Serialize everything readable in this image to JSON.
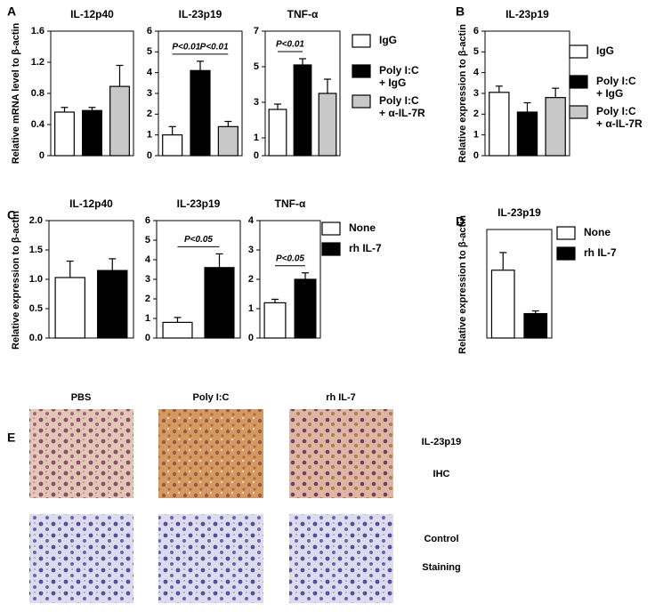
{
  "panels": [
    "A",
    "B",
    "C",
    "D",
    "E"
  ],
  "ylabels": [
    "Relative mRNA level to β-actin",
    "Relative expression to β-actin",
    "Relative expression to β-actin",
    "Relative expression to β-actin"
  ],
  "chart_data": [
    {
      "type": "bar",
      "title": "IL-12p40",
      "values": [
        0.56,
        0.58,
        0.89
      ],
      "errors": [
        0.06,
        0.04,
        0.27
      ],
      "colors": [
        "#ffffff",
        "#000000",
        "#c8c8c8"
      ],
      "ylim": [
        0,
        1.6
      ],
      "yticks": [
        0,
        0.4,
        0.8,
        1.2,
        1.6
      ]
    },
    {
      "type": "bar",
      "title": "IL-23p19",
      "values": [
        1.0,
        4.1,
        1.4
      ],
      "errors": [
        0.4,
        0.45,
        0.25
      ],
      "colors": [
        "#ffffff",
        "#000000",
        "#c8c8c8"
      ],
      "ylim": [
        0,
        6
      ],
      "yticks": [
        0,
        1,
        2,
        3,
        4,
        5,
        6
      ],
      "annotations": [
        {
          "text": "P<0.01",
          "bars": [
            0,
            1
          ]
        },
        {
          "text": "P<0.01",
          "bars": [
            1,
            2
          ]
        }
      ]
    },
    {
      "type": "bar",
      "title": "TNF-α",
      "values": [
        2.6,
        5.1,
        3.5
      ],
      "errors": [
        0.3,
        0.35,
        0.8
      ],
      "colors": [
        "#ffffff",
        "#000000",
        "#c8c8c8"
      ],
      "ylim": [
        0,
        7
      ],
      "yticks": [
        0,
        1,
        3,
        5,
        7
      ],
      "annotations": [
        {
          "text": "P<0.01",
          "bars": [
            0,
            1
          ]
        }
      ]
    },
    {
      "type": "bar",
      "title": "IL-23p19",
      "values": [
        3.05,
        2.1,
        2.8
      ],
      "errors": [
        0.3,
        0.45,
        0.45
      ],
      "colors": [
        "#ffffff",
        "#000000",
        "#c8c8c8"
      ],
      "ylim": [
        0,
        6
      ],
      "yticks": [
        0,
        1,
        2,
        3,
        4,
        5,
        6
      ]
    },
    {
      "type": "bar",
      "title": "IL-12p40",
      "values": [
        1.03,
        1.15
      ],
      "errors": [
        0.28,
        0.2
      ],
      "colors": [
        "#ffffff",
        "#000000"
      ],
      "ylim": [
        0,
        2
      ],
      "yticks": [
        {
          "value": 0,
          "label": "0.0"
        },
        {
          "value": 0.5,
          "label": "0.5"
        },
        {
          "value": 1,
          "label": "1.0"
        },
        {
          "value": 1.5,
          "label": "1.5"
        },
        {
          "value": 2,
          "label": "2.0"
        }
      ]
    },
    {
      "type": "bar",
      "title": "IL-23p19",
      "values": [
        0.8,
        3.6
      ],
      "errors": [
        0.25,
        0.7
      ],
      "colors": [
        "#ffffff",
        "#000000"
      ],
      "ylim": [
        0,
        6
      ],
      "yticks": [
        0,
        1,
        2,
        3,
        4,
        5,
        6
      ],
      "annotations": [
        {
          "text": "P<0.05",
          "bars": [
            0,
            1
          ]
        }
      ]
    },
    {
      "type": "bar",
      "title": "TNF-α",
      "values": [
        1.2,
        2.0
      ],
      "errors": [
        0.12,
        0.22
      ],
      "colors": [
        "#ffffff",
        "#000000"
      ],
      "ylim": [
        0,
        4
      ],
      "yticks": [
        0,
        1,
        2,
        3,
        4
      ],
      "annotations": [
        {
          "text": "P<0.05",
          "bars": [
            0,
            1
          ]
        }
      ]
    },
    {
      "type": "bar",
      "title": "IL-23p19",
      "values": [
        2.5,
        0.9
      ],
      "errors": [
        0.65,
        0.1
      ],
      "colors": [
        "#ffffff",
        "#000000"
      ],
      "ylim": [
        0,
        4
      ]
    }
  ],
  "legends": [
    [
      {
        "label": [
          "IgG"
        ],
        "color": "#ffffff"
      },
      {
        "label": [
          "Poly I:C",
          "+ IgG"
        ],
        "color": "#000000"
      },
      {
        "label": [
          "Poly I:C",
          "+ α-IL-7R"
        ],
        "color": "#c8c8c8"
      }
    ],
    [
      {
        "label": [
          "IgG"
        ],
        "color": "#ffffff"
      },
      {
        "label": [
          "Poly I:C",
          "+ IgG"
        ],
        "color": "#000000"
      },
      {
        "label": [
          "Poly I:C",
          "+ α-IL-7R"
        ],
        "color": "#c8c8c8"
      }
    ],
    [
      {
        "label": [
          "None"
        ],
        "color": "#ffffff"
      },
      {
        "label": [
          "rh IL-7"
        ],
        "color": "#000000"
      }
    ],
    [
      {
        "label": [
          "None"
        ],
        "color": "#ffffff"
      },
      {
        "label": [
          "rh IL-7"
        ],
        "color": "#000000"
      }
    ]
  ],
  "ihc": {
    "columns": [
      "PBS",
      "Poly I:C",
      "rh IL-7"
    ],
    "row_labels": [
      "IL-23p19",
      "IHC",
      "Control",
      "Staining"
    ]
  }
}
